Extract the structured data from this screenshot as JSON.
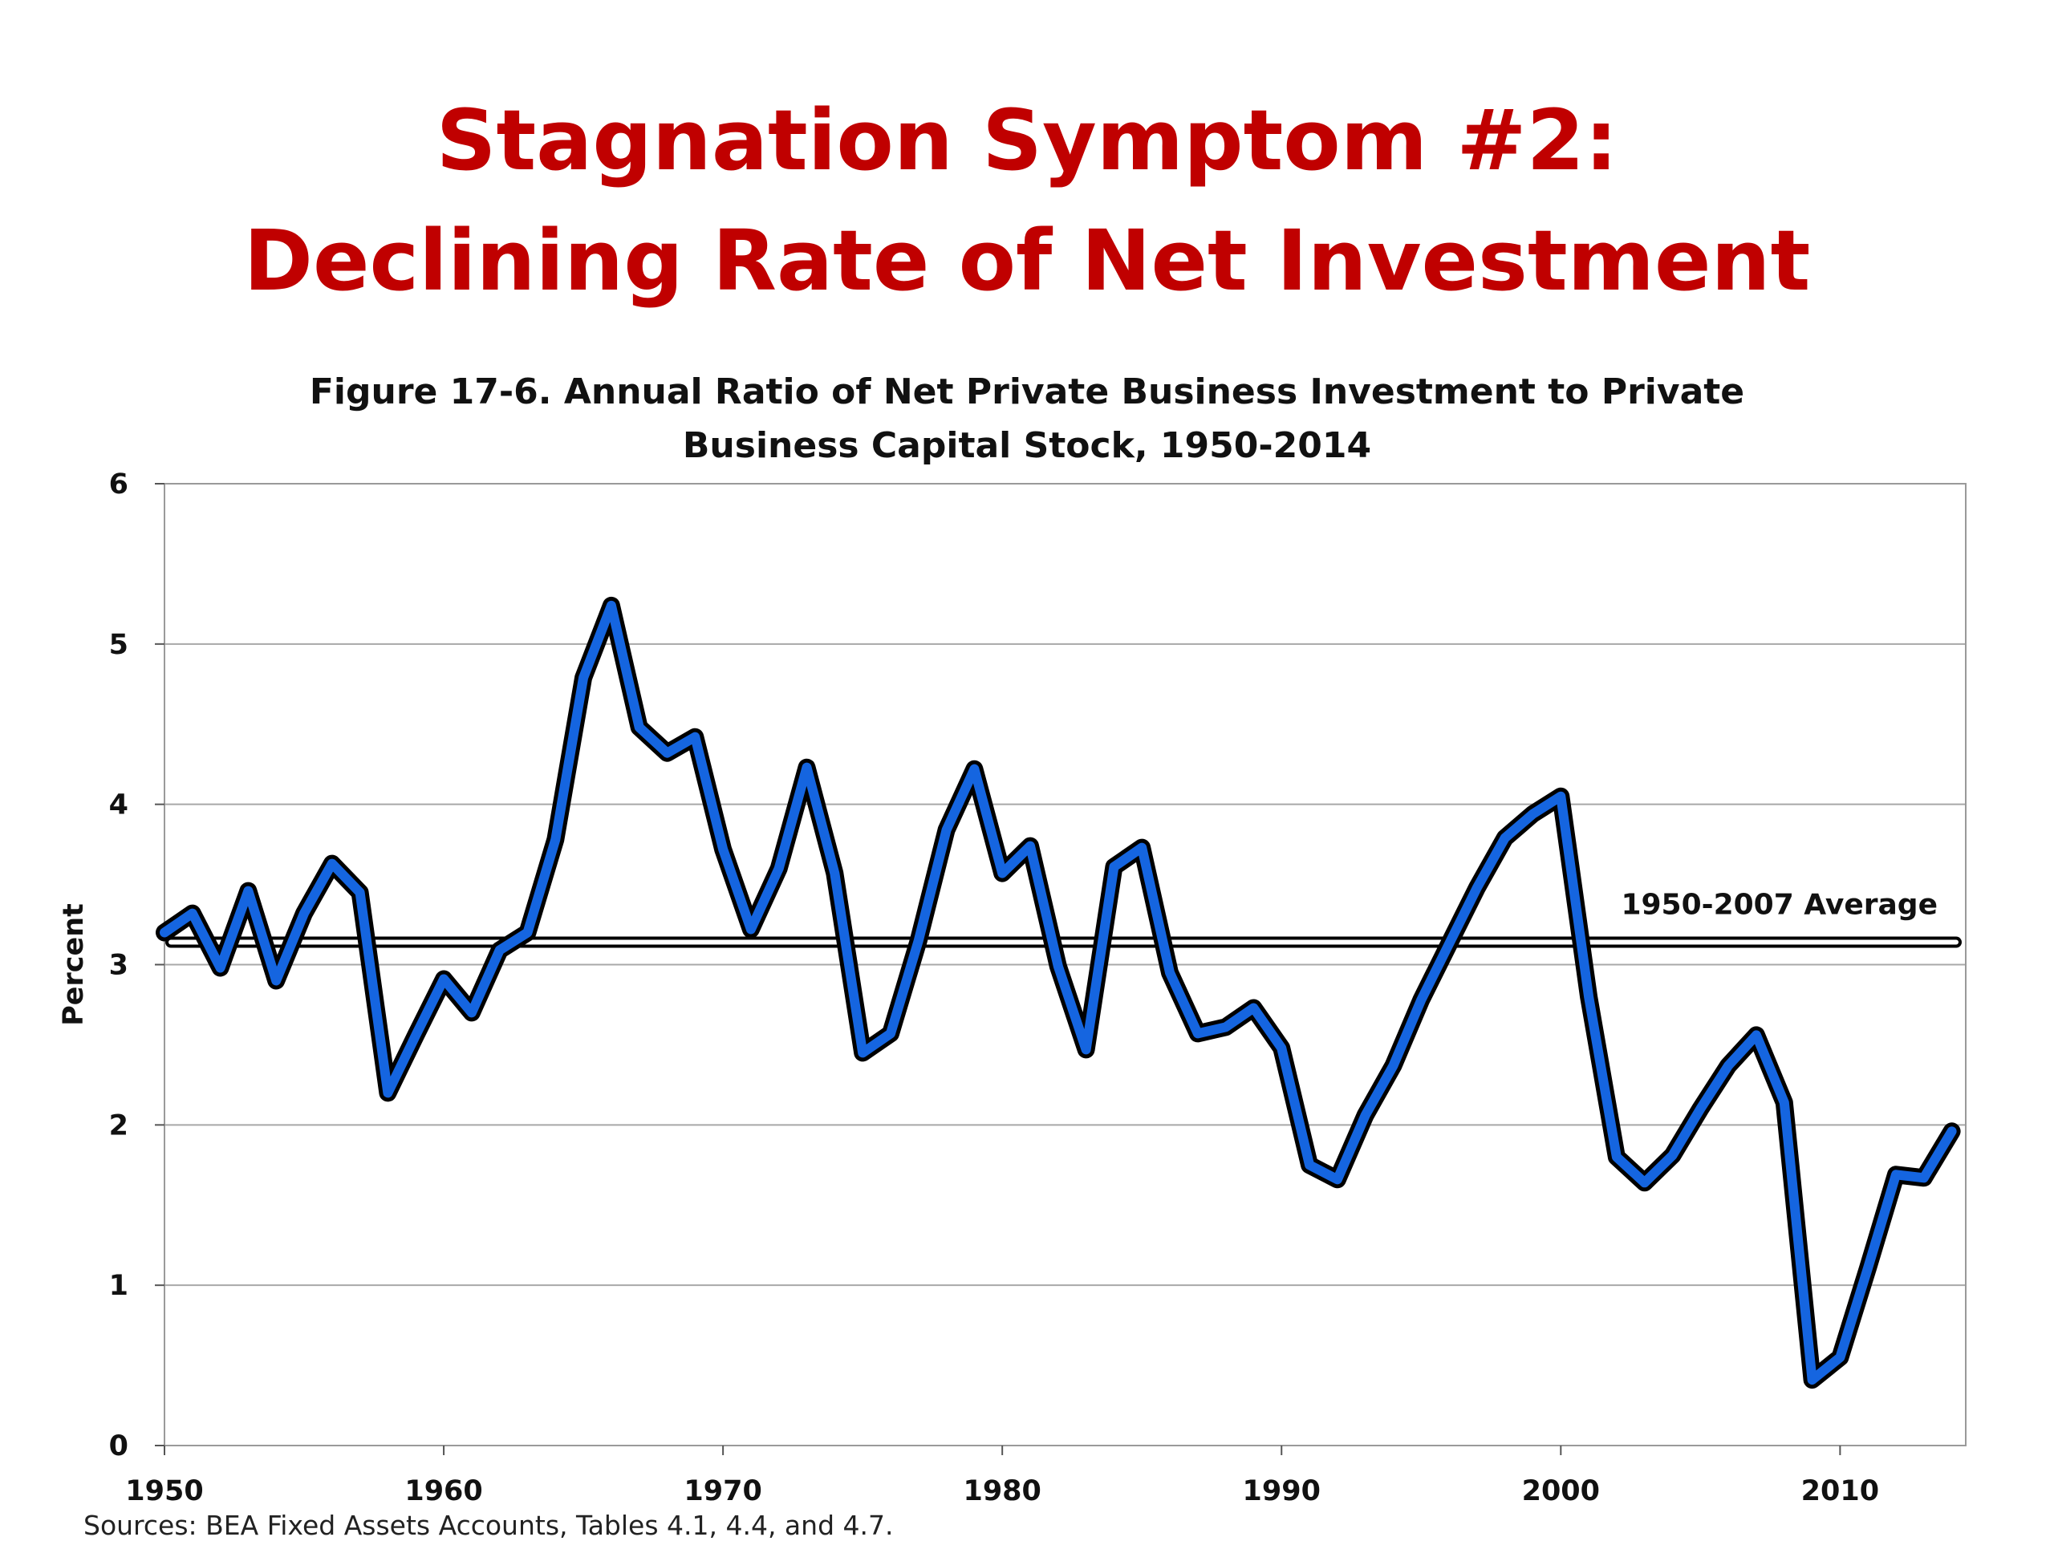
{
  "slide": {
    "title_line1": "Stagnation Symptom #2:",
    "title_line2": "Declining Rate of Net Investment",
    "title_color": "#c00000",
    "source": "Sources: BEA Fixed Assets Accounts, Tables 4.1, 4.4, and 4.7."
  },
  "chart_data": {
    "type": "line",
    "title_line1": "Figure 17-6. Annual Ratio of Net Private Business Investment to Private",
    "title_line2": "Business Capital Stock, 1950-2014",
    "xlabel": "",
    "ylabel": "Percent",
    "xlim": [
      1950,
      2014.5
    ],
    "ylim": [
      0,
      6
    ],
    "yticks": [
      0,
      1,
      2,
      3,
      4,
      5,
      6
    ],
    "xticks": [
      1950,
      1960,
      1970,
      1980,
      1990,
      2000,
      2010
    ],
    "grid": true,
    "series": [
      {
        "line_color": "#1565e0",
        "outline_color": "#000000",
        "x": [
          1950,
          1951,
          1952,
          1953,
          1954,
          1955,
          1956,
          1957,
          1958,
          1959,
          1960,
          1961,
          1962,
          1963,
          1964,
          1965,
          1966,
          1967,
          1968,
          1969,
          1970,
          1971,
          1972,
          1973,
          1974,
          1975,
          1976,
          1977,
          1978,
          1979,
          1980,
          1981,
          1982,
          1983,
          1984,
          1985,
          1986,
          1987,
          1988,
          1989,
          1990,
          1991,
          1992,
          1993,
          1994,
          1995,
          1996,
          1997,
          1998,
          1999,
          2000,
          2001,
          2002,
          2003,
          2004,
          2005,
          2006,
          2007,
          2008,
          2009,
          2010,
          2011,
          2012,
          2013,
          2014
        ],
        "y": [
          3.2,
          3.32,
          2.98,
          3.46,
          2.9,
          3.32,
          3.63,
          3.45,
          2.2,
          2.56,
          2.91,
          2.7,
          3.09,
          3.2,
          3.78,
          4.79,
          5.24,
          4.48,
          4.32,
          4.42,
          3.72,
          3.22,
          3.6,
          4.23,
          3.57,
          2.45,
          2.57,
          3.15,
          3.84,
          4.22,
          3.57,
          3.74,
          2.99,
          2.47,
          3.61,
          3.73,
          2.95,
          2.57,
          2.61,
          2.73,
          2.48,
          1.75,
          1.66,
          2.06,
          2.37,
          2.78,
          3.13,
          3.48,
          3.79,
          3.94,
          4.05,
          2.8,
          1.8,
          1.64,
          1.81,
          2.1,
          2.37,
          2.56,
          2.14,
          0.41,
          0.55,
          1.11,
          1.69,
          1.67,
          1.96
        ]
      }
    ],
    "reference_line": {
      "label": "1950-2007 Average",
      "value": 3.14
    }
  }
}
